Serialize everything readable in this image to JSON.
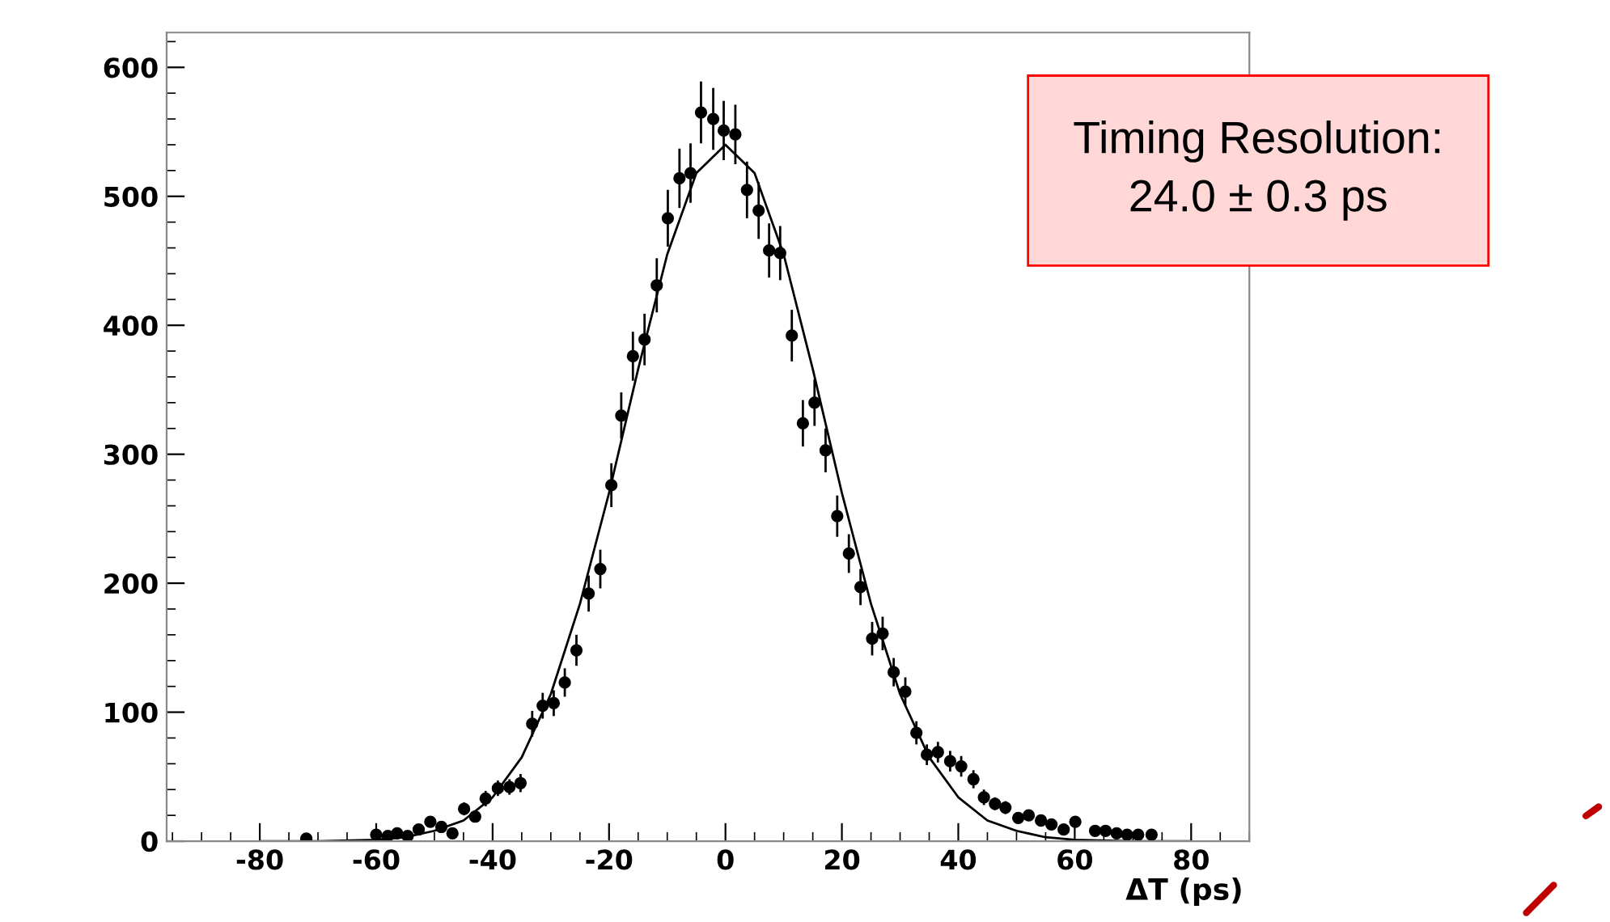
{
  "chart_data": {
    "type": "scatter",
    "xlabel": "ΔT (ps)",
    "xlim": [
      -96,
      90
    ],
    "ylim": [
      0,
      627
    ],
    "xticks": [
      -80,
      -60,
      -40,
      -20,
      0,
      20,
      40,
      60,
      80
    ],
    "yticks": [
      0,
      100,
      200,
      300,
      400,
      500,
      600
    ],
    "grid": false,
    "marker": "circle",
    "annotations": [
      "Timing Resolution:\n24.0 ± 0.3 ps"
    ],
    "series": [
      {
        "color": "#000000",
        "x": [
          -72,
          -60,
          -58,
          -56.4,
          -54.6,
          -52.7,
          -50.7,
          -48.8,
          -46.9,
          -44.9,
          -43,
          -41.2,
          -39.1,
          -37.1,
          -35.2,
          -33.2,
          -31.4,
          -29.5,
          -27.6,
          -25.6,
          -23.5,
          -21.5,
          -19.6,
          -17.9,
          -15.9,
          -13.9,
          -11.8,
          -9.9,
          -7.9,
          -6,
          -4.2,
          -2.1,
          -0.3,
          1.7,
          3.7,
          5.7,
          7.5,
          9.4,
          11.4,
          13.3,
          15.3,
          17.2,
          19.2,
          21.2,
          23.2,
          25.2,
          27,
          28.9,
          30.9,
          32.8,
          34.6,
          36.5,
          38.6,
          40.5,
          42.6,
          44.4,
          46.3,
          48.1,
          50.3,
          52.1,
          54.2,
          56,
          58.1,
          60.1,
          63.5,
          65.3,
          67.2,
          69,
          70.9,
          73.2
        ],
        "values": [
          2,
          5,
          4,
          6,
          4,
          9,
          15,
          11,
          6,
          25,
          19,
          33,
          41,
          42,
          45,
          91,
          105,
          107,
          123,
          148,
          192,
          211,
          276,
          330,
          376,
          389,
          431,
          483,
          514,
          518,
          565,
          560,
          551,
          548,
          505,
          489,
          458,
          456,
          392,
          324,
          340,
          303,
          252,
          223,
          197,
          157,
          161,
          131,
          116,
          84,
          67,
          69,
          62,
          58,
          48,
          34,
          29,
          26,
          18,
          20,
          16,
          13,
          9,
          15,
          8,
          8,
          6,
          5,
          5,
          5
        ],
        "errors": [
          1,
          2,
          2,
          2,
          2,
          3,
          4,
          3,
          2,
          5,
          4,
          6,
          6,
          6,
          7,
          10,
          10,
          10,
          11,
          12,
          14,
          15,
          17,
          18,
          19,
          20,
          21,
          22,
          23,
          23,
          24,
          24,
          23,
          23,
          22,
          22,
          21,
          21,
          20,
          18,
          18,
          17,
          16,
          15,
          14,
          13,
          13,
          11,
          11,
          9,
          8,
          8,
          8,
          8,
          7,
          6,
          5,
          5,
          4,
          4,
          4,
          4,
          3,
          4,
          3,
          3,
          2,
          2,
          2,
          2
        ]
      },
      {
        "type": "line",
        "color": "#000000",
        "marker": "none",
        "x": [
          -80,
          -70,
          -60,
          -55,
          -50,
          -45,
          -40,
          -35,
          -30,
          -25,
          -20,
          -15,
          -10,
          -5,
          0,
          5,
          10,
          15,
          20,
          25,
          30,
          35,
          40,
          45,
          50,
          55,
          60,
          70,
          80
        ],
        "values": [
          0,
          0,
          1,
          3,
          8,
          16,
          34,
          65,
          114,
          184,
          270,
          366,
          455,
          518,
          540,
          518,
          455,
          366,
          270,
          184,
          114,
          65,
          34,
          16,
          8,
          3,
          1,
          0,
          0
        ]
      }
    ]
  }
}
